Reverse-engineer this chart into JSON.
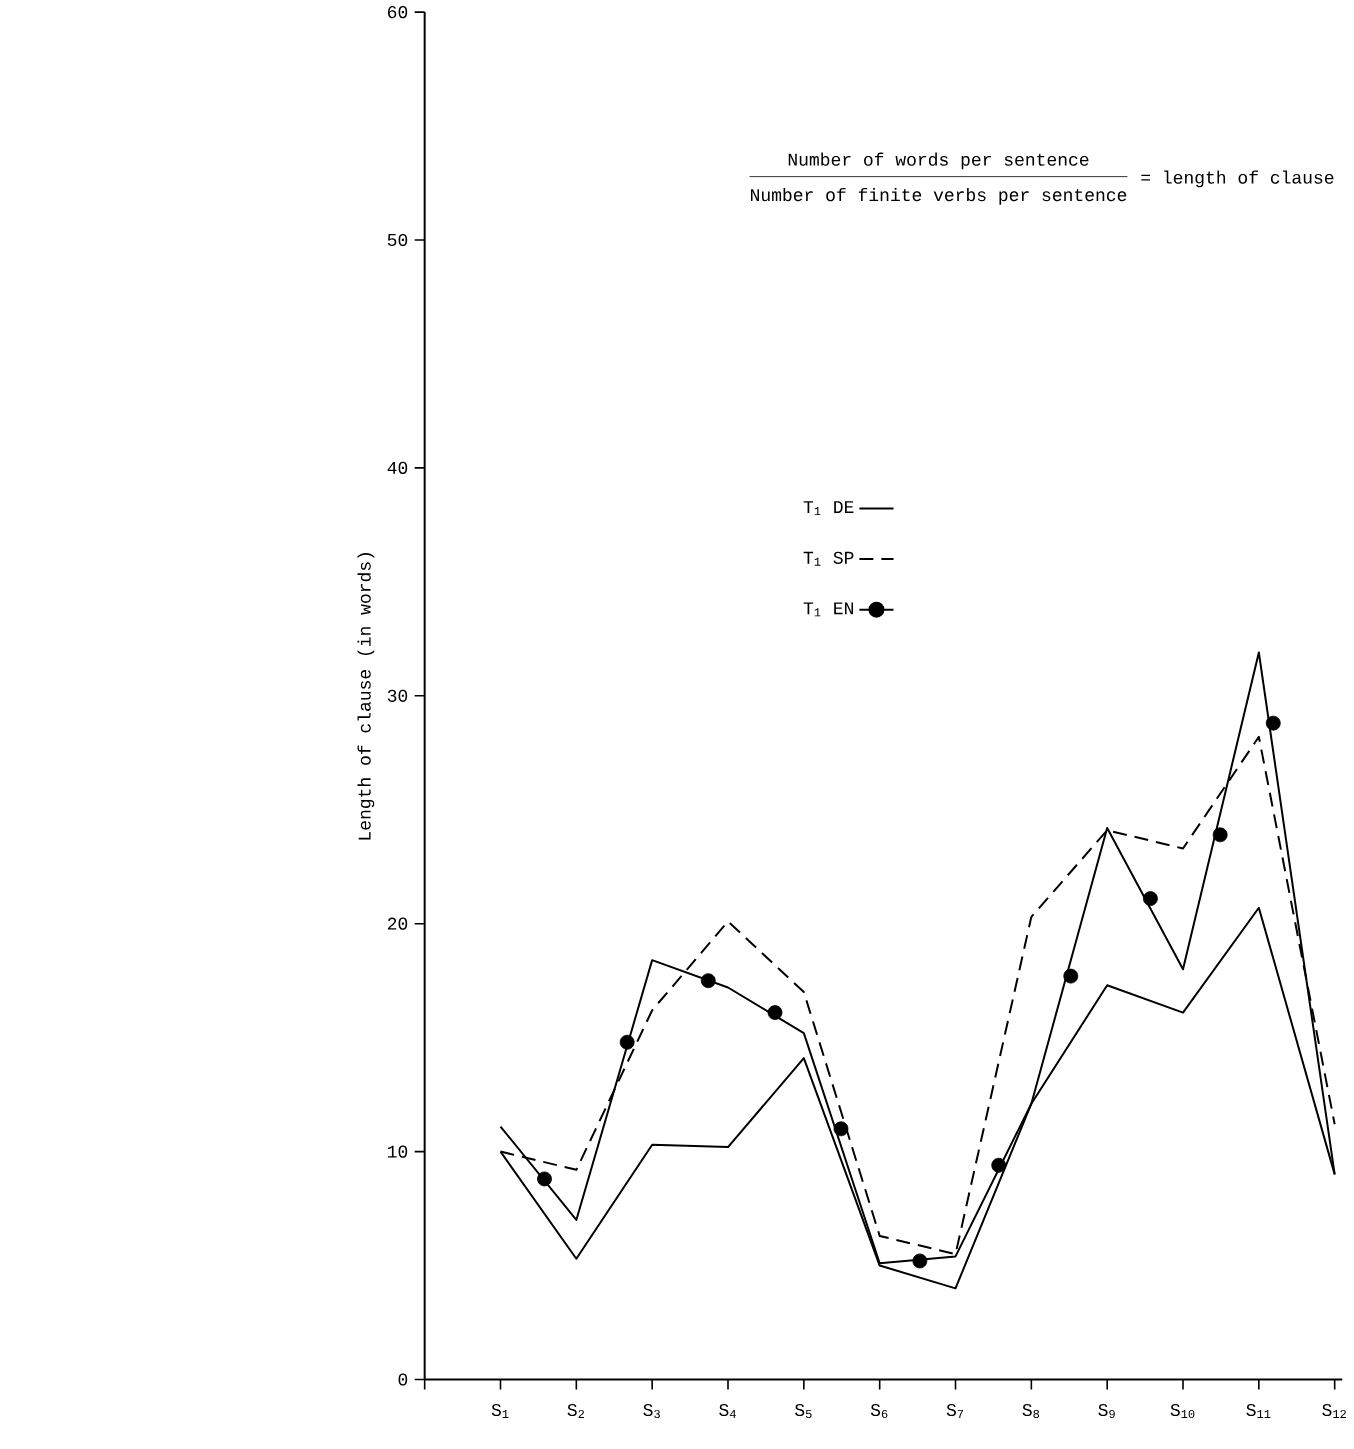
{
  "chart_data": {
    "type": "line",
    "ylabel": "Length of clause (in words)",
    "annotations": [
      "Number of words per sentence",
      "Number of finite verbs per sentence",
      "= length of clause"
    ],
    "x": [
      1,
      2,
      3,
      4,
      5,
      6,
      7,
      8,
      9,
      10,
      11,
      12
    ],
    "xlim": [
      0,
      12.1
    ],
    "xticks": [
      {
        "value": 0,
        "label": null
      },
      {
        "value": 1,
        "label": "S$_{1}$"
      },
      {
        "value": 2,
        "label": "S$_{2}$"
      },
      {
        "value": 3,
        "label": "S$_{3}$"
      },
      {
        "value": 4,
        "label": "S$_{4}$"
      },
      {
        "value": 5,
        "label": "S$_{5}$"
      },
      {
        "value": 6,
        "label": "S$_{6}$"
      },
      {
        "value": 7,
        "label": "S$_{7}$"
      },
      {
        "value": 8,
        "label": "S$_{8}$"
      },
      {
        "value": 9,
        "label": "S$_{9}$"
      },
      {
        "value": 10,
        "label": "S$_{10}$"
      },
      {
        "value": 11,
        "label": "S$_{11}$"
      },
      {
        "value": 12,
        "label": "S$_{12}$"
      }
    ],
    "ylim": [
      0,
      60
    ],
    "yticks": [
      0,
      10,
      20,
      30,
      40,
      50,
      60
    ],
    "legend": "center",
    "series": [
      {
        "name": "T$_{1}$ DE",
        "color": "#000000",
        "line_style": "solid",
        "values": [
          10.0,
          5.3,
          10.3,
          10.2,
          14.1,
          5.0,
          4.0,
          12.1,
          17.3,
          16.1,
          20.7,
          9.0
        ]
      },
      {
        "name": "T$_{1}$ SP",
        "color": "#000000",
        "line_style": "dashed",
        "values": [
          10.0,
          9.2,
          16.2,
          20.1,
          17.0,
          6.3,
          5.5,
          20.3,
          24.1,
          23.3,
          28.2,
          11.2
        ]
      },
      {
        "name": "T$_{1}$ EN",
        "color": "#000000",
        "line_style": "solid",
        "values": [
          11.1,
          7.0,
          18.4,
          17.2,
          15.2,
          5.1,
          5.4,
          12.1,
          24.2,
          18.0,
          31.9,
          9.0
        ]
      },
      {
        "type": "scatter",
        "color": "#000000",
        "marker": "circle",
        "x": [
          1.58,
          2.67,
          3.74,
          4.62,
          5.49,
          6.53,
          7.57,
          8.52,
          9.57,
          10.49,
          11.19
        ],
        "values": [
          8.8,
          14.8,
          17.5,
          16.1,
          11.0,
          5.2,
          9.4,
          17.7,
          21.1,
          23.9,
          28.8
        ]
      }
    ]
  }
}
